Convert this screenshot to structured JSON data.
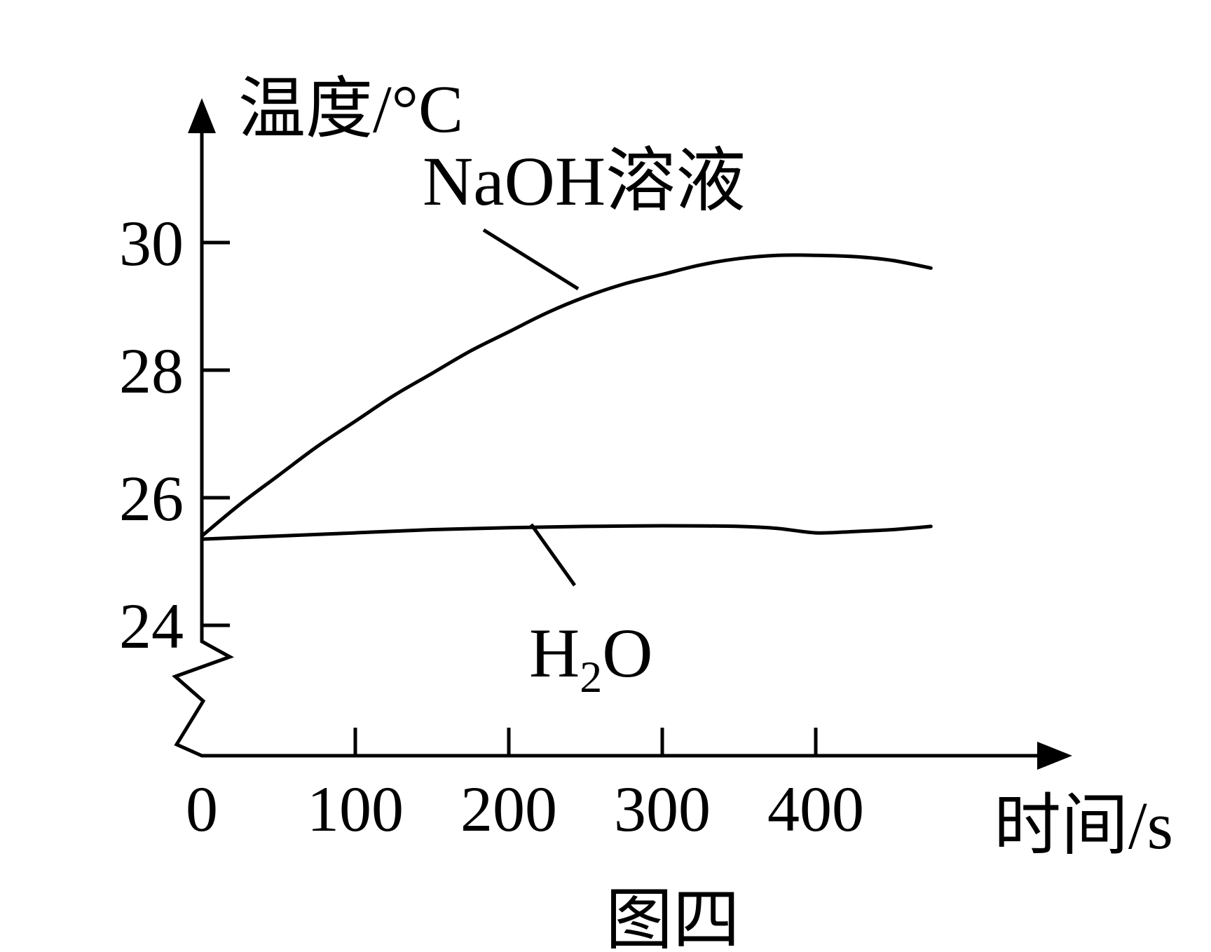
{
  "chart_data": {
    "type": "line",
    "title": "",
    "caption": "图四",
    "xlabel": "时间/s",
    "ylabel": "温度/°C",
    "xlim": [
      0,
      480
    ],
    "ylim": [
      23.2,
      31.8
    ],
    "y_axis_break": true,
    "xticks": [
      0,
      100,
      200,
      300,
      400
    ],
    "xtick_labels": [
      "0",
      "100",
      "200",
      "300",
      "400"
    ],
    "yticks": [
      24,
      26,
      28,
      30
    ],
    "ytick_labels": [
      "24",
      "26",
      "28",
      "30"
    ],
    "series": [
      {
        "name": "NaOH溶液",
        "label_text": "NaOH",
        "label_suffix": "溶液",
        "x": [
          0,
          25,
          50,
          75,
          100,
          125,
          150,
          175,
          200,
          225,
          250,
          275,
          300,
          325,
          350,
          375,
          400,
          425,
          450,
          475
        ],
        "values": [
          25.4,
          25.9,
          26.35,
          26.8,
          27.2,
          27.6,
          27.95,
          28.3,
          28.6,
          28.9,
          29.15,
          29.35,
          29.5,
          29.65,
          29.75,
          29.8,
          29.8,
          29.78,
          29.72,
          29.6
        ]
      },
      {
        "name": "H2O",
        "label_text": "H",
        "label_sub": "2",
        "label_suffix": "O",
        "x": [
          0,
          50,
          100,
          150,
          200,
          250,
          300,
          350,
          375,
          400,
          425,
          450,
          475
        ],
        "values": [
          25.35,
          25.4,
          25.45,
          25.5,
          25.53,
          25.55,
          25.56,
          25.55,
          25.52,
          25.45,
          25.47,
          25.5,
          25.55
        ]
      }
    ]
  }
}
